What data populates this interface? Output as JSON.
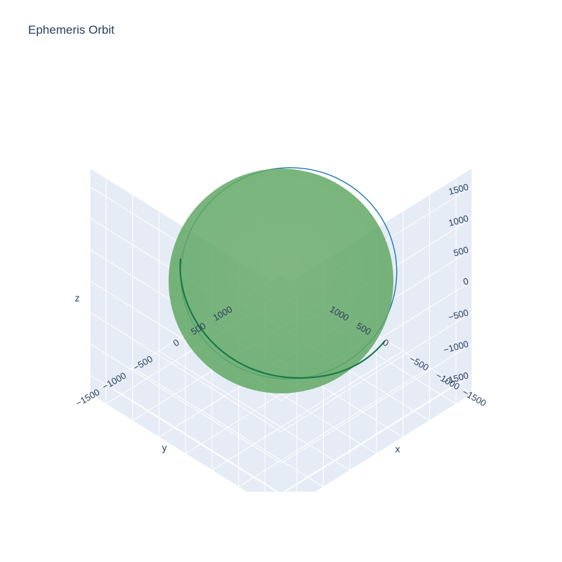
{
  "chart_data": {
    "type": "scatter3d",
    "title": "Ephemeris Orbit",
    "axes": {
      "x": {
        "title": "x",
        "ticks": [
          -1500,
          -1000,
          -500,
          0,
          500,
          1000
        ],
        "range": [
          -1800,
          1800
        ]
      },
      "y": {
        "title": "y",
        "ticks": [
          -1500,
          -1000,
          -500,
          0,
          500,
          1000
        ],
        "range": [
          -1800,
          1800
        ]
      },
      "z": {
        "title": "z",
        "ticks": [
          -1500,
          -1000,
          -500,
          0,
          500,
          1000,
          1500
        ],
        "range": [
          -1800,
          1800
        ]
      }
    },
    "sphere": {
      "radius": 1737,
      "color": "#5aac5e",
      "opacity": 0.85
    },
    "orbit": {
      "radius": 1837,
      "inclination_deg": 20,
      "line_color": "#1f77b4"
    },
    "background_color": "#e5ecf6",
    "grid": true,
    "legend": "none"
  }
}
